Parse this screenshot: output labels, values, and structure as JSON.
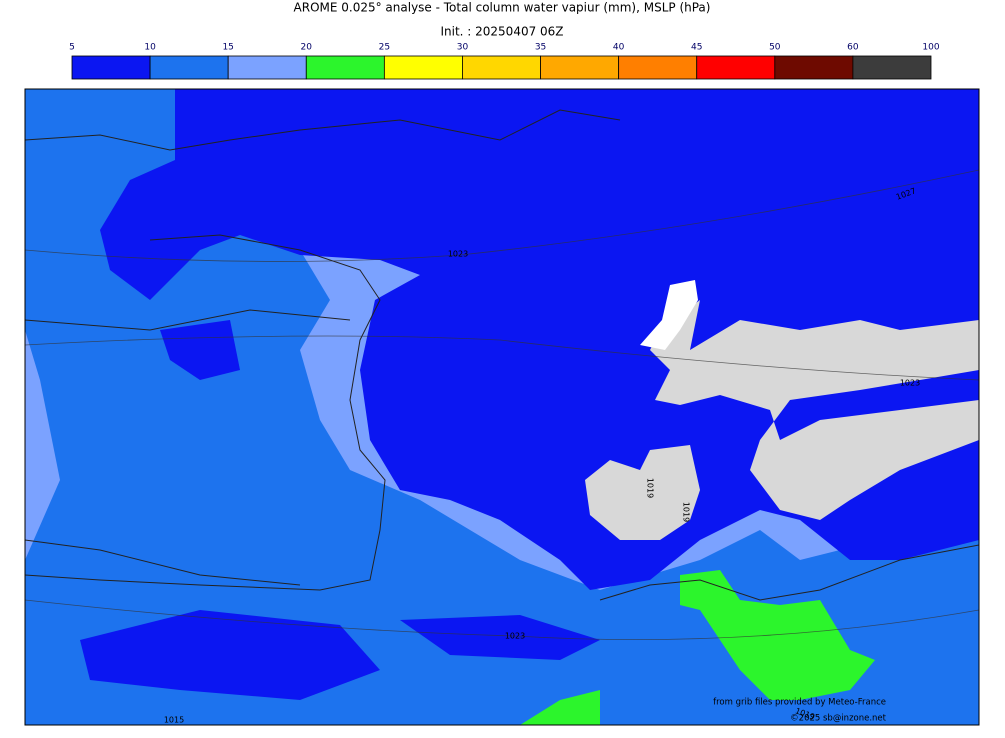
{
  "header": {
    "title": "AROME 0.025° analyse - Total column water vapiur (mm), MSLP (hPa)",
    "init": "Init. : 20250407 06Z"
  },
  "colorbar": {
    "ticks": [
      5,
      10,
      15,
      20,
      25,
      30,
      35,
      40,
      45,
      50,
      60,
      100
    ],
    "colors": [
      "#0b16f2",
      "#1d73ee",
      "#7ba2ff",
      "#2cf52c",
      "#ffff00",
      "#ffd700",
      "#ffa800",
      "#ff7f00",
      "#ff0000",
      "#6e0a00",
      "#3c3c3c"
    ]
  },
  "isobars": [
    "1023",
    "1027",
    "1023",
    "1019",
    "1019",
    "1023",
    "1015",
    "1019"
  ],
  "credits": [
    "from grib files provided by Meteo-France",
    "©2025 sb@inzone.net"
  ]
}
